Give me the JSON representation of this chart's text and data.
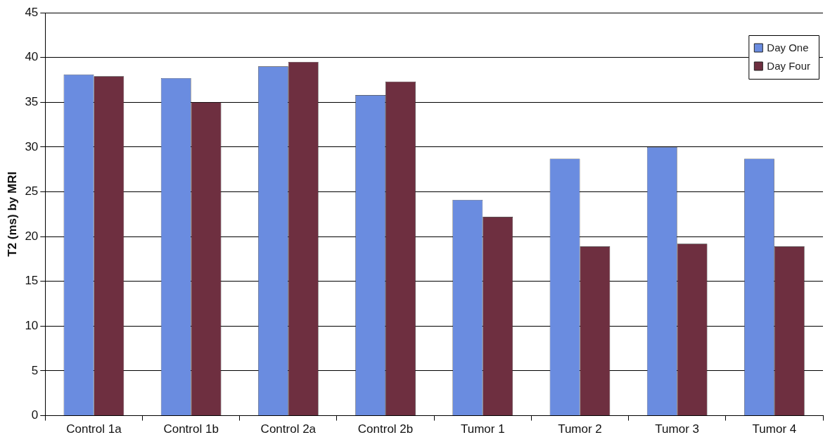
{
  "chart_data": {
    "type": "bar",
    "ylabel": "T2 (ms) by MRI",
    "categories": [
      "Control 1a",
      "Control 1b",
      "Control 2a",
      "Control 2b",
      "Tumor 1",
      "Tumor 2",
      "Tumor 3",
      "Tumor 4"
    ],
    "series": [
      {
        "name": "Day One",
        "color": "#6a8ce0",
        "values": [
          38.1,
          37.7,
          39.0,
          35.8,
          24.1,
          28.7,
          30.0,
          28.7
        ]
      },
      {
        "name": "Day Four",
        "color": "#6e2f40",
        "values": [
          37.9,
          35.0,
          39.5,
          37.3,
          22.2,
          18.9,
          19.2,
          18.9
        ]
      }
    ],
    "ylim": [
      0,
      45
    ],
    "yticks": [
      0,
      5,
      10,
      15,
      20,
      25,
      30,
      35,
      40,
      45
    ],
    "grid": "y",
    "legend": "top right"
  }
}
